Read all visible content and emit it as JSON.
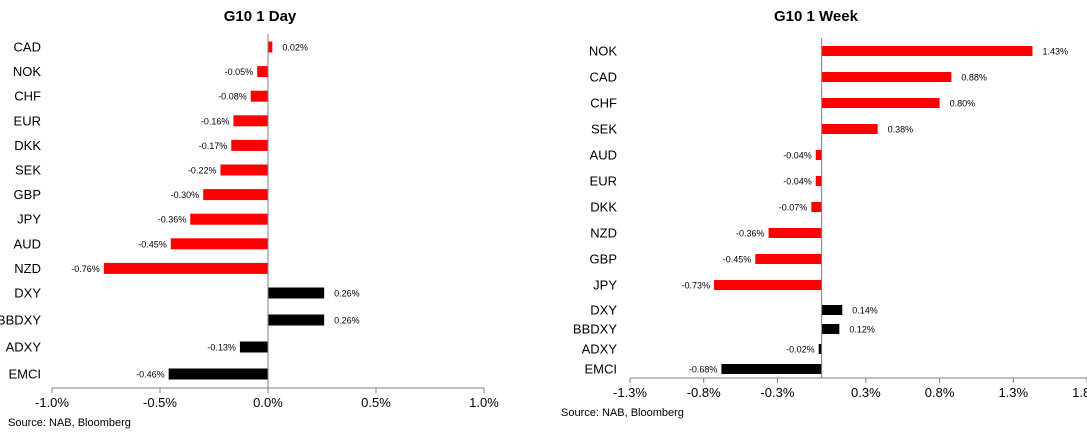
{
  "chart_data": [
    {
      "type": "bar",
      "orientation": "horizontal",
      "title": "G10 1 Day",
      "categories": [
        "CAD",
        "NOK",
        "CHF",
        "EUR",
        "DKK",
        "SEK",
        "GBP",
        "JPY",
        "AUD",
        "NZD",
        "DXY",
        "BBDXY",
        "ADXY",
        "EMCI"
      ],
      "values": [
        0.02,
        -0.05,
        -0.08,
        -0.16,
        -0.17,
        -0.22,
        -0.3,
        -0.36,
        -0.45,
        -0.76,
        0.26,
        0.26,
        -0.13,
        -0.46
      ],
      "data_labels": [
        "0.02%",
        "-0.05%",
        "-0.08%",
        "-0.16%",
        "-0.17%",
        "-0.22%",
        "-0.30%",
        "-0.36%",
        "-0.45%",
        "-0.76%",
        "0.26%",
        "0.26%",
        "-0.13%",
        "-0.46%"
      ],
      "bar_colors": [
        "#ff0000",
        "#ff0000",
        "#ff0000",
        "#ff0000",
        "#ff0000",
        "#ff0000",
        "#ff0000",
        "#ff0000",
        "#ff0000",
        "#ff0000",
        "#000000",
        "#000000",
        "#000000",
        "#000000"
      ],
      "x_ticks": [
        -1.0,
        -0.5,
        0.0,
        0.5,
        1.0
      ],
      "x_tick_labels": [
        "-1.0%",
        "-0.5%",
        "0.0%",
        "0.5%",
        "1.0%"
      ],
      "xlim": [
        -1.0,
        1.0
      ],
      "grid": false,
      "source": "Source: NAB, Bloomberg"
    },
    {
      "type": "bar",
      "orientation": "horizontal",
      "title": "G10 1 Week",
      "categories": [
        "NOK",
        "CAD",
        "CHF",
        "SEK",
        "AUD",
        "EUR",
        "DKK",
        "NZD",
        "GBP",
        "JPY",
        "DXY",
        "BBDXY",
        "ADXY",
        "EMCI"
      ],
      "values": [
        1.43,
        0.88,
        0.8,
        0.38,
        -0.04,
        -0.04,
        -0.07,
        -0.36,
        -0.45,
        -0.73,
        0.14,
        0.12,
        -0.02,
        -0.68
      ],
      "data_labels": [
        "1.43%",
        "0.88%",
        "0.80%",
        "0.38%",
        "-0.04%",
        "-0.04%",
        "-0.07%",
        "-0.36%",
        "-0.45%",
        "-0.73%",
        "0.14%",
        "0.12%",
        "-0.02%",
        "-0.68%"
      ],
      "bar_colors": [
        "#ff0000",
        "#ff0000",
        "#ff0000",
        "#ff0000",
        "#ff0000",
        "#ff0000",
        "#ff0000",
        "#ff0000",
        "#ff0000",
        "#ff0000",
        "#000000",
        "#000000",
        "#000000",
        "#000000"
      ],
      "x_ticks": [
        -1.3,
        -0.8,
        -0.3,
        0.3,
        0.8,
        1.3,
        1.8
      ],
      "x_tick_labels": [
        "-1.3%",
        "-0.8%",
        "-0.3%",
        "0.3%",
        "0.8%",
        "1.3%",
        "1.8%"
      ],
      "xlim": [
        -1.3,
        1.8
      ],
      "grid": false,
      "source": "Source: NAB, Bloomberg"
    }
  ]
}
